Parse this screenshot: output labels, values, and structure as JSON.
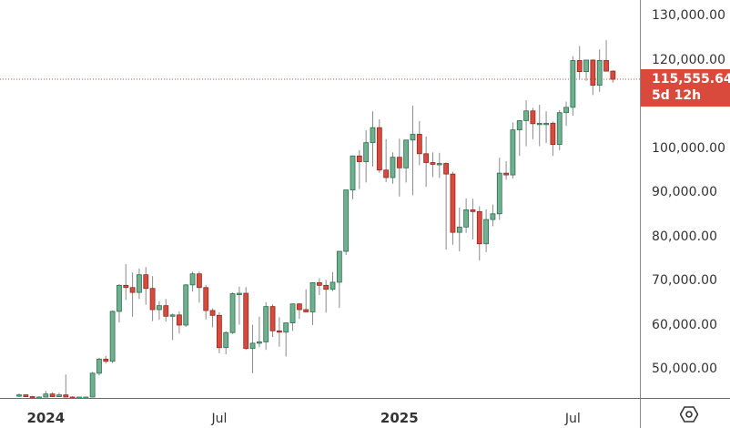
{
  "chart_data": {
    "type": "candlestick",
    "title": "",
    "interval": "1W",
    "xlabel": "",
    "ylabel": "",
    "ylim": [
      43500,
      133500
    ],
    "grid": false,
    "colors": {
      "up": "#6fb08f",
      "down": "#d94a3d",
      "up_border": "#2f6e52",
      "down_border": "#8f2a22",
      "wick": "#8a8a8a",
      "last_price_line": "#d94a3d"
    },
    "y_ticks": [
      "130,000.00",
      "120,000.00",
      "100,000.00",
      "90,000.00",
      "80,000.00",
      "70,000.00",
      "60,000.00",
      "50,000.00"
    ],
    "y_tick_values": [
      130000,
      120000,
      100000,
      90000,
      80000,
      70000,
      60000,
      50000
    ],
    "x_ticks": [
      {
        "label": "2024",
        "major": true,
        "index": 4
      },
      {
        "label": "Jul",
        "major": false,
        "index": 30
      },
      {
        "label": "2025",
        "major": true,
        "index": 57
      },
      {
        "label": "Jul",
        "major": false,
        "index": 83
      }
    ],
    "last_price": {
      "value": "115,555.64",
      "numeric": 115555.64,
      "countdown": "5d 12h"
    },
    "candles": [
      [
        44000,
        44400,
        43400,
        44100
      ],
      [
        44100,
        44200,
        43400,
        43700
      ],
      [
        43700,
        43900,
        43300,
        43400
      ],
      [
        43400,
        43800,
        43200,
        43600
      ],
      [
        43600,
        45000,
        43400,
        44300
      ],
      [
        44300,
        44700,
        43600,
        43700
      ],
      [
        43700,
        44600,
        43400,
        44100
      ],
      [
        44100,
        48700,
        43500,
        43500
      ],
      [
        43500,
        43800,
        43200,
        43400
      ],
      [
        43400,
        43700,
        43200,
        43500
      ],
      [
        43500,
        43700,
        43300,
        43600
      ],
      [
        43600,
        49300,
        43400,
        49000
      ],
      [
        49000,
        52500,
        48500,
        52200
      ],
      [
        52200,
        52900,
        51200,
        51700
      ],
      [
        51700,
        63200,
        51300,
        63000
      ],
      [
        63000,
        69200,
        60500,
        68900
      ],
      [
        68900,
        73700,
        65600,
        68400
      ],
      [
        68400,
        71800,
        61800,
        67300
      ],
      [
        67300,
        72700,
        65800,
        71300
      ],
      [
        71300,
        73000,
        64500,
        68200
      ],
      [
        68200,
        71000,
        60800,
        63400
      ],
      [
        63400,
        65300,
        61100,
        64300
      ],
      [
        64300,
        65800,
        60700,
        61900
      ],
      [
        61900,
        62500,
        56500,
        62200
      ],
      [
        62200,
        63000,
        58000,
        59900
      ],
      [
        59900,
        69200,
        59500,
        69000
      ],
      [
        69000,
        72000,
        67500,
        71500
      ],
      [
        71500,
        72000,
        65000,
        68400
      ],
      [
        68400,
        69000,
        61200,
        63200
      ],
      [
        63200,
        63700,
        59400,
        62100
      ],
      [
        62100,
        62800,
        53500,
        54800
      ],
      [
        54800,
        58500,
        53300,
        58200
      ],
      [
        58200,
        67300,
        57900,
        67000
      ],
      [
        67000,
        68600,
        60000,
        67100
      ],
      [
        67100,
        68500,
        54300,
        54600
      ],
      [
        54600,
        60000,
        49000,
        55800
      ],
      [
        55800,
        61800,
        54900,
        56100
      ],
      [
        56100,
        65100,
        54300,
        64100
      ],
      [
        64100,
        64600,
        57200,
        58600
      ],
      [
        58600,
        61700,
        55000,
        58300
      ],
      [
        58300,
        59700,
        52800,
        60400
      ],
      [
        60400,
        63300,
        58600,
        64700
      ],
      [
        64700,
        64900,
        61300,
        63400
      ],
      [
        63400,
        68000,
        62800,
        62900
      ],
      [
        62900,
        66600,
        59900,
        69500
      ],
      [
        69500,
        70500,
        66700,
        68900
      ],
      [
        68900,
        70100,
        62700,
        68000
      ],
      [
        68000,
        71900,
        67600,
        69600
      ],
      [
        69600,
        70200,
        63800,
        76600
      ],
      [
        76600,
        80000,
        75800,
        90500
      ],
      [
        90500,
        93900,
        88400,
        98200
      ],
      [
        98200,
        99500,
        90700,
        96900
      ],
      [
        96900,
        104000,
        92200,
        101200
      ],
      [
        101200,
        108300,
        95800,
        104600
      ],
      [
        104600,
        106500,
        94400,
        95000
      ],
      [
        95000,
        102000,
        92300,
        93300
      ],
      [
        93300,
        99000,
        91900,
        97900
      ],
      [
        97900,
        102100,
        89000,
        95500
      ],
      [
        95500,
        99700,
        92200,
        101800
      ],
      [
        101800,
        109600,
        89300,
        103100
      ],
      [
        103100,
        106100,
        96100,
        98700
      ],
      [
        98700,
        102600,
        91200,
        96700
      ],
      [
        96700,
        99000,
        93400,
        96300
      ],
      [
        96300,
        98900,
        93200,
        96500
      ],
      [
        96500,
        96700,
        77000,
        94100
      ],
      [
        94100,
        94600,
        78100,
        80900
      ],
      [
        80900,
        86500,
        76600,
        82100
      ],
      [
        82100,
        88600,
        80800,
        86000
      ],
      [
        86000,
        88500,
        79300,
        85600
      ],
      [
        85600,
        86800,
        74500,
        78300
      ],
      [
        78300,
        86100,
        76400,
        83800
      ],
      [
        83800,
        87200,
        82300,
        85100
      ],
      [
        85100,
        97800,
        83700,
        94300
      ],
      [
        94300,
        97000,
        92800,
        93900
      ],
      [
        93900,
        105800,
        93100,
        104100
      ],
      [
        104100,
        106300,
        98200,
        106200
      ],
      [
        106200,
        110800,
        100400,
        108400
      ],
      [
        108400,
        109100,
        102000,
        105500
      ],
      [
        105500,
        109800,
        100400,
        105600
      ],
      [
        105600,
        108300,
        101100,
        105600
      ],
      [
        105600,
        106000,
        98200,
        100800
      ],
      [
        100800,
        108600,
        99500,
        108000
      ],
      [
        108000,
        110500,
        105000,
        109200
      ],
      [
        109200,
        120800,
        107300,
        119800
      ],
      [
        119800,
        123100,
        115700,
        117300
      ],
      [
        117300,
        120000,
        115200,
        119900
      ],
      [
        119900,
        120100,
        112000,
        114200
      ],
      [
        114200,
        122300,
        112700,
        119800
      ],
      [
        119800,
        124400,
        117300,
        117400
      ],
      [
        117400,
        117600,
        114800,
        115555.64
      ]
    ]
  },
  "price_axis": {
    "ticks": [
      "130,000.00",
      "120,000.00",
      "100,000.00",
      "90,000.00",
      "80,000.00",
      "70,000.00",
      "60,000.00",
      "50,000.00"
    ],
    "last_price_label": "115,555.64",
    "countdown_label": "5d 12h"
  },
  "time_axis": {
    "labels": [
      "2024",
      "Jul",
      "2025",
      "Jul"
    ]
  },
  "corner": {
    "icon": "settings-icon"
  }
}
